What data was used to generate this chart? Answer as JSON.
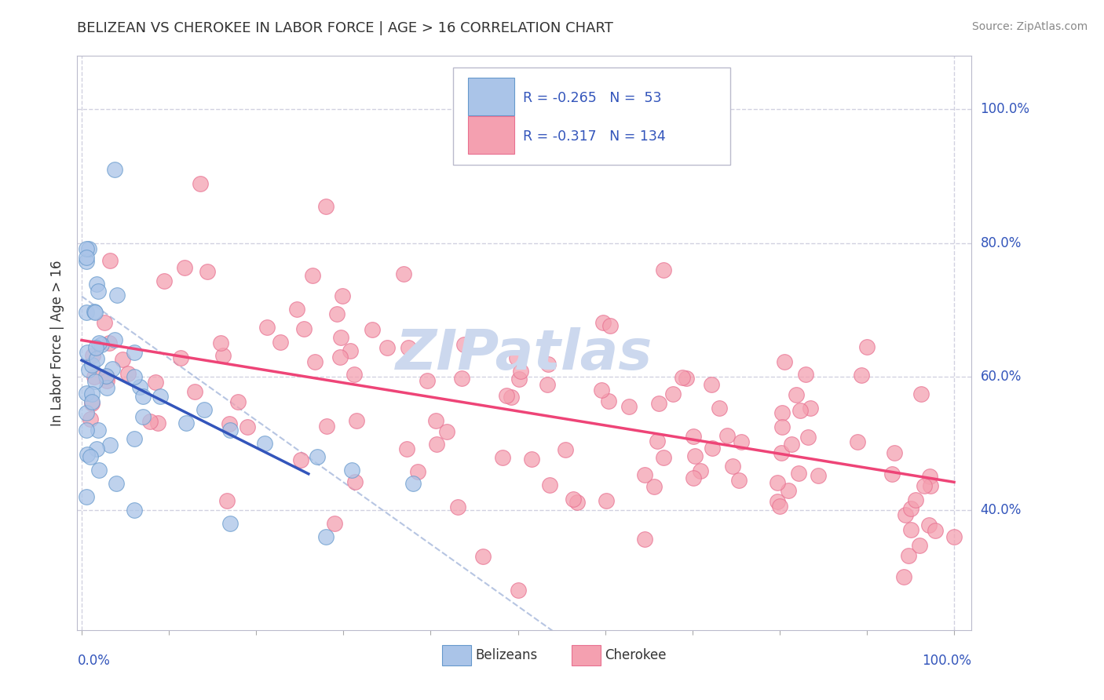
{
  "title": "BELIZEAN VS CHEROKEE IN LABOR FORCE | AGE > 16 CORRELATION CHART",
  "source": "Source: ZipAtlas.com",
  "ylabel": "In Labor Force | Age > 16",
  "belizean_R": -0.265,
  "belizean_N": 53,
  "cherokee_R": -0.317,
  "cherokee_N": 134,
  "belizean_color": "#aac4e8",
  "belizean_edge_color": "#6699cc",
  "cherokee_color": "#f4a0b0",
  "cherokee_edge_color": "#e87090",
  "belizean_line_color": "#3355bb",
  "cherokee_line_color": "#ee4477",
  "dashed_line_color": "#aabbdd",
  "watermark_color": "#ccd8ee",
  "background_color": "#ffffff",
  "grid_color": "#ccccdd",
  "legend_label_color": "#3355bb",
  "title_color": "#333333",
  "axis_label_color": "#3355bb",
  "source_color": "#888888",
  "xlim": [
    -0.005,
    1.02
  ],
  "ylim": [
    0.22,
    1.08
  ]
}
